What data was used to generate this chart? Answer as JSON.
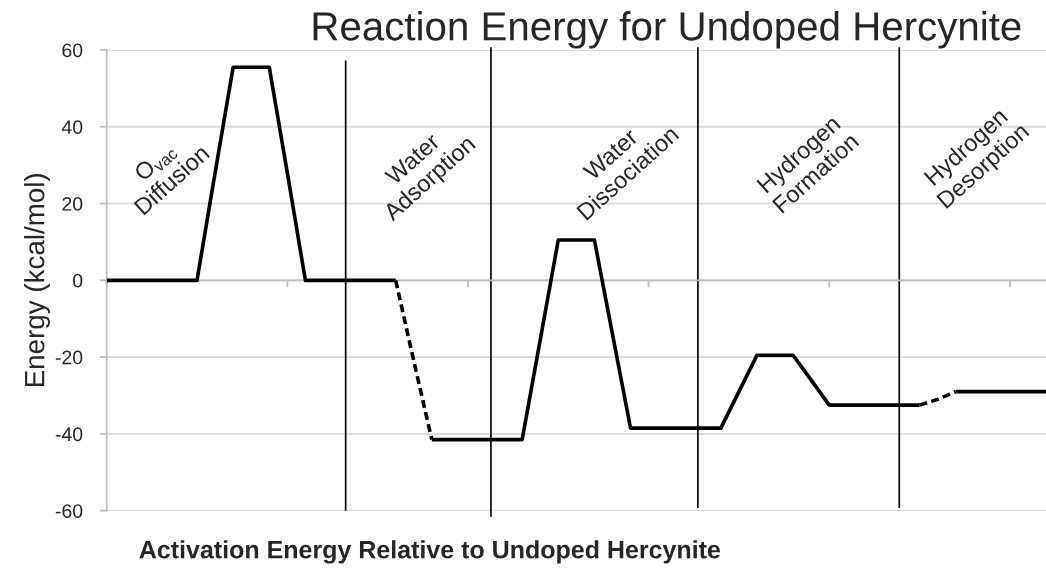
{
  "chart_data": {
    "type": "line",
    "title": "Reaction Energy for Undoped Hercynite",
    "xlabel": "Activation Energy Relative to Undoped Hercynite",
    "ylabel": "Energy (kcal/mol)",
    "categories": [
      null,
      null,
      null,
      null,
      null,
      null,
      null,
      null,
      null,
      null,
      null,
      null,
      null,
      null,
      null,
      null,
      null,
      null,
      null,
      null,
      null,
      null,
      null,
      null,
      null,
      null,
      null,
      null,
      null,
      null,
      null,
      null,
      null,
      null,
      null,
      null,
      null,
      null,
      null,
      null,
      null,
      null,
      null,
      null,
      null,
      null,
      null,
      null,
      null,
      null,
      null,
      null,
      null
    ],
    "series": [
      {
        "color": "#000000",
        "line_style": "solid",
        "values": [
          0,
          0,
          0,
          0,
          0,
          0,
          28,
          55.5,
          55.5,
          55.5,
          28,
          0,
          0,
          0,
          0,
          0,
          0,
          null,
          null,
          null,
          null,
          null,
          null,
          null,
          null,
          null,
          null,
          null,
          null,
          null,
          null,
          null,
          null,
          null,
          null,
          null,
          null,
          null,
          null,
          null,
          null,
          null,
          null,
          null,
          null,
          null,
          null,
          null,
          null,
          null,
          null,
          null,
          null
        ]
      },
      {
        "color": "#000000",
        "line_style": "dashed",
        "values": [
          null,
          null,
          null,
          null,
          null,
          null,
          null,
          null,
          null,
          null,
          null,
          null,
          null,
          null,
          null,
          null,
          0,
          -21,
          -41.5,
          null,
          null,
          null,
          null,
          null,
          null,
          null,
          null,
          null,
          null,
          null,
          null,
          null,
          null,
          null,
          null,
          null,
          null,
          null,
          null,
          null,
          null,
          null,
          null,
          null,
          null,
          null,
          null,
          null,
          null,
          null,
          null,
          null,
          null
        ]
      },
      {
        "color": "#000000",
        "line_style": "solid",
        "values": [
          null,
          null,
          null,
          null,
          null,
          null,
          null,
          null,
          null,
          null,
          null,
          null,
          null,
          null,
          null,
          null,
          null,
          null,
          -41.5,
          -41.5,
          -41.5,
          -41.5,
          -41.5,
          -41.5,
          -15.5,
          10.5,
          10.5,
          10.5,
          -14,
          -38.5,
          -38.5,
          -38.5,
          -38.5,
          -38.5,
          -38.5,
          -29,
          -19.5,
          -19.5,
          -19.5,
          -26,
          -32.5,
          -32.5,
          -32.5,
          -32.5,
          -32.5,
          -32.5,
          null,
          null,
          null,
          null,
          null,
          null,
          null
        ]
      },
      {
        "color": "#000000",
        "line_style": "dashed",
        "values": [
          null,
          null,
          null,
          null,
          null,
          null,
          null,
          null,
          null,
          null,
          null,
          null,
          null,
          null,
          null,
          null,
          null,
          null,
          null,
          null,
          null,
          null,
          null,
          null,
          null,
          null,
          null,
          null,
          null,
          null,
          null,
          null,
          null,
          null,
          null,
          null,
          null,
          null,
          null,
          null,
          null,
          null,
          null,
          null,
          null,
          -32.5,
          -31,
          -29,
          null,
          null,
          null,
          null,
          null
        ]
      },
      {
        "color": "#000000",
        "line_style": "solid",
        "values": [
          null,
          null,
          null,
          null,
          null,
          null,
          null,
          null,
          null,
          null,
          null,
          null,
          null,
          null,
          null,
          null,
          null,
          null,
          null,
          null,
          null,
          null,
          null,
          null,
          null,
          null,
          null,
          null,
          null,
          null,
          null,
          null,
          null,
          null,
          null,
          null,
          null,
          null,
          null,
          null,
          null,
          null,
          null,
          null,
          null,
          null,
          null,
          -29,
          -29,
          -29,
          -29,
          -29,
          -29
        ]
      }
    ],
    "ylim": [
      -60,
      60
    ],
    "yticks": [
      -60,
      -40,
      -20,
      0,
      20,
      40,
      60
    ],
    "tick_labels": "y",
    "grid": "y",
    "annotations": [
      "O$_{vac}$\nDiffusion",
      "Water\nAdsorption",
      "Water\nDissociation",
      "Hydrogen\nFormation",
      "Hydrogen\nDesorption"
    ]
  }
}
